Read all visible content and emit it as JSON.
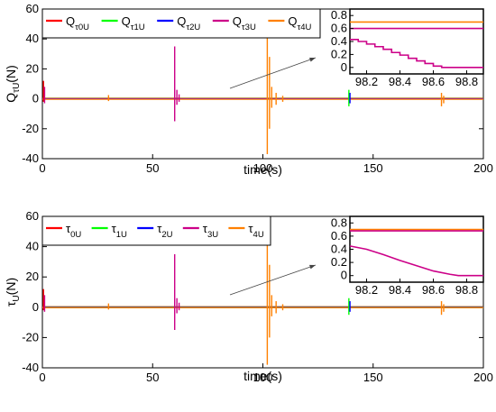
{
  "chart_data": [
    {
      "type": "line",
      "xlabel": "time(s)",
      "ylabel_main": "Q",
      "ylabel_sub": "τU",
      "ylabel_unit": "(N)",
      "xlim": [
        0,
        200
      ],
      "ylim": [
        -40,
        60
      ],
      "xticks": [
        "0",
        "50",
        "100",
        "150",
        "200"
      ],
      "yticks": [
        "-40",
        "-20",
        "0",
        "20",
        "40",
        "60"
      ],
      "legend_placement": "top-left",
      "series": [
        {
          "name_main": "Q",
          "name_sub": "τ0U",
          "color": "#ff0000"
        },
        {
          "name_main": "Q",
          "name_sub": "τ1U",
          "color": "#00ff00"
        },
        {
          "name_main": "Q",
          "name_sub": "τ2U",
          "color": "#0000ff"
        },
        {
          "name_main": "Q",
          "name_sub": "τ3U",
          "color": "#cc0088"
        },
        {
          "name_main": "Q",
          "name_sub": "τ4U",
          "color": "#ff8000"
        }
      ],
      "inset": {
        "xlim": [
          98.1,
          98.9
        ],
        "ylim": [
          -0.1,
          0.9
        ],
        "xticks": [
          "98.2",
          "98.4",
          "98.6",
          "98.8"
        ],
        "yticks": [
          "0",
          "0.2",
          "0.4",
          "0.6",
          "0.8"
        ],
        "lines": [
          {
            "color": "#ff8000",
            "values": [
              [
                98.1,
                0.7
              ],
              [
                98.9,
                0.7
              ]
            ]
          },
          {
            "color": "#cc0088",
            "values": [
              [
                98.1,
                0.6
              ],
              [
                98.9,
                0.6
              ]
            ]
          },
          {
            "color": "#cc0088",
            "style": "staircase",
            "values": [
              [
                98.1,
                0.43
              ],
              [
                98.15,
                0.43
              ],
              [
                98.15,
                0.4
              ],
              [
                98.2,
                0.4
              ],
              [
                98.2,
                0.36
              ],
              [
                98.25,
                0.36
              ],
              [
                98.25,
                0.32
              ],
              [
                98.3,
                0.32
              ],
              [
                98.3,
                0.28
              ],
              [
                98.35,
                0.28
              ],
              [
                98.35,
                0.23
              ],
              [
                98.4,
                0.23
              ],
              [
                98.4,
                0.19
              ],
              [
                98.45,
                0.19
              ],
              [
                98.45,
                0.14
              ],
              [
                98.5,
                0.14
              ],
              [
                98.5,
                0.1
              ],
              [
                98.55,
                0.1
              ],
              [
                98.55,
                0.06
              ],
              [
                98.6,
                0.06
              ],
              [
                98.6,
                0.02
              ],
              [
                98.65,
                0.02
              ],
              [
                98.65,
                0.0
              ],
              [
                98.9,
                0.0
              ]
            ]
          }
        ]
      }
    },
    {
      "type": "line",
      "xlabel": "time(s)",
      "ylabel_main": "τ",
      "ylabel_sub": "U",
      "ylabel_unit": "(N)",
      "xlim": [
        0,
        200
      ],
      "ylim": [
        -40,
        60
      ],
      "xticks": [
        "0",
        "50",
        "100",
        "150",
        "200"
      ],
      "yticks": [
        "-40",
        "-20",
        "0",
        "20",
        "40",
        "60"
      ],
      "legend_placement": "top-left",
      "series": [
        {
          "name_main": "τ",
          "name_sub": "0U",
          "color": "#ff0000"
        },
        {
          "name_main": "τ",
          "name_sub": "1U",
          "color": "#00ff00"
        },
        {
          "name_main": "τ",
          "name_sub": "2U",
          "color": "#0000ff"
        },
        {
          "name_main": "τ",
          "name_sub": "3U",
          "color": "#cc0088"
        },
        {
          "name_main": "τ",
          "name_sub": "4U",
          "color": "#ff8000"
        }
      ],
      "inset": {
        "xlim": [
          98.1,
          98.9
        ],
        "ylim": [
          -0.1,
          0.9
        ],
        "xticks": [
          "98.2",
          "98.4",
          "98.6",
          "98.8"
        ],
        "yticks": [
          "0",
          "0.2",
          "0.4",
          "0.6",
          "0.8"
        ],
        "lines": [
          {
            "color": "#ff8000",
            "values": [
              [
                98.1,
                0.7
              ],
              [
                98.9,
                0.7
              ]
            ]
          },
          {
            "color": "#cc0088",
            "values": [
              [
                98.1,
                0.68
              ],
              [
                98.9,
                0.68
              ]
            ]
          },
          {
            "color": "#cc0088",
            "style": "smooth",
            "values": [
              [
                98.1,
                0.45
              ],
              [
                98.2,
                0.4
              ],
              [
                98.3,
                0.32
              ],
              [
                98.4,
                0.23
              ],
              [
                98.5,
                0.15
              ],
              [
                98.6,
                0.07
              ],
              [
                98.7,
                0.02
              ],
              [
                98.75,
                0.0
              ],
              [
                98.9,
                0.0
              ]
            ]
          }
        ]
      }
    }
  ]
}
